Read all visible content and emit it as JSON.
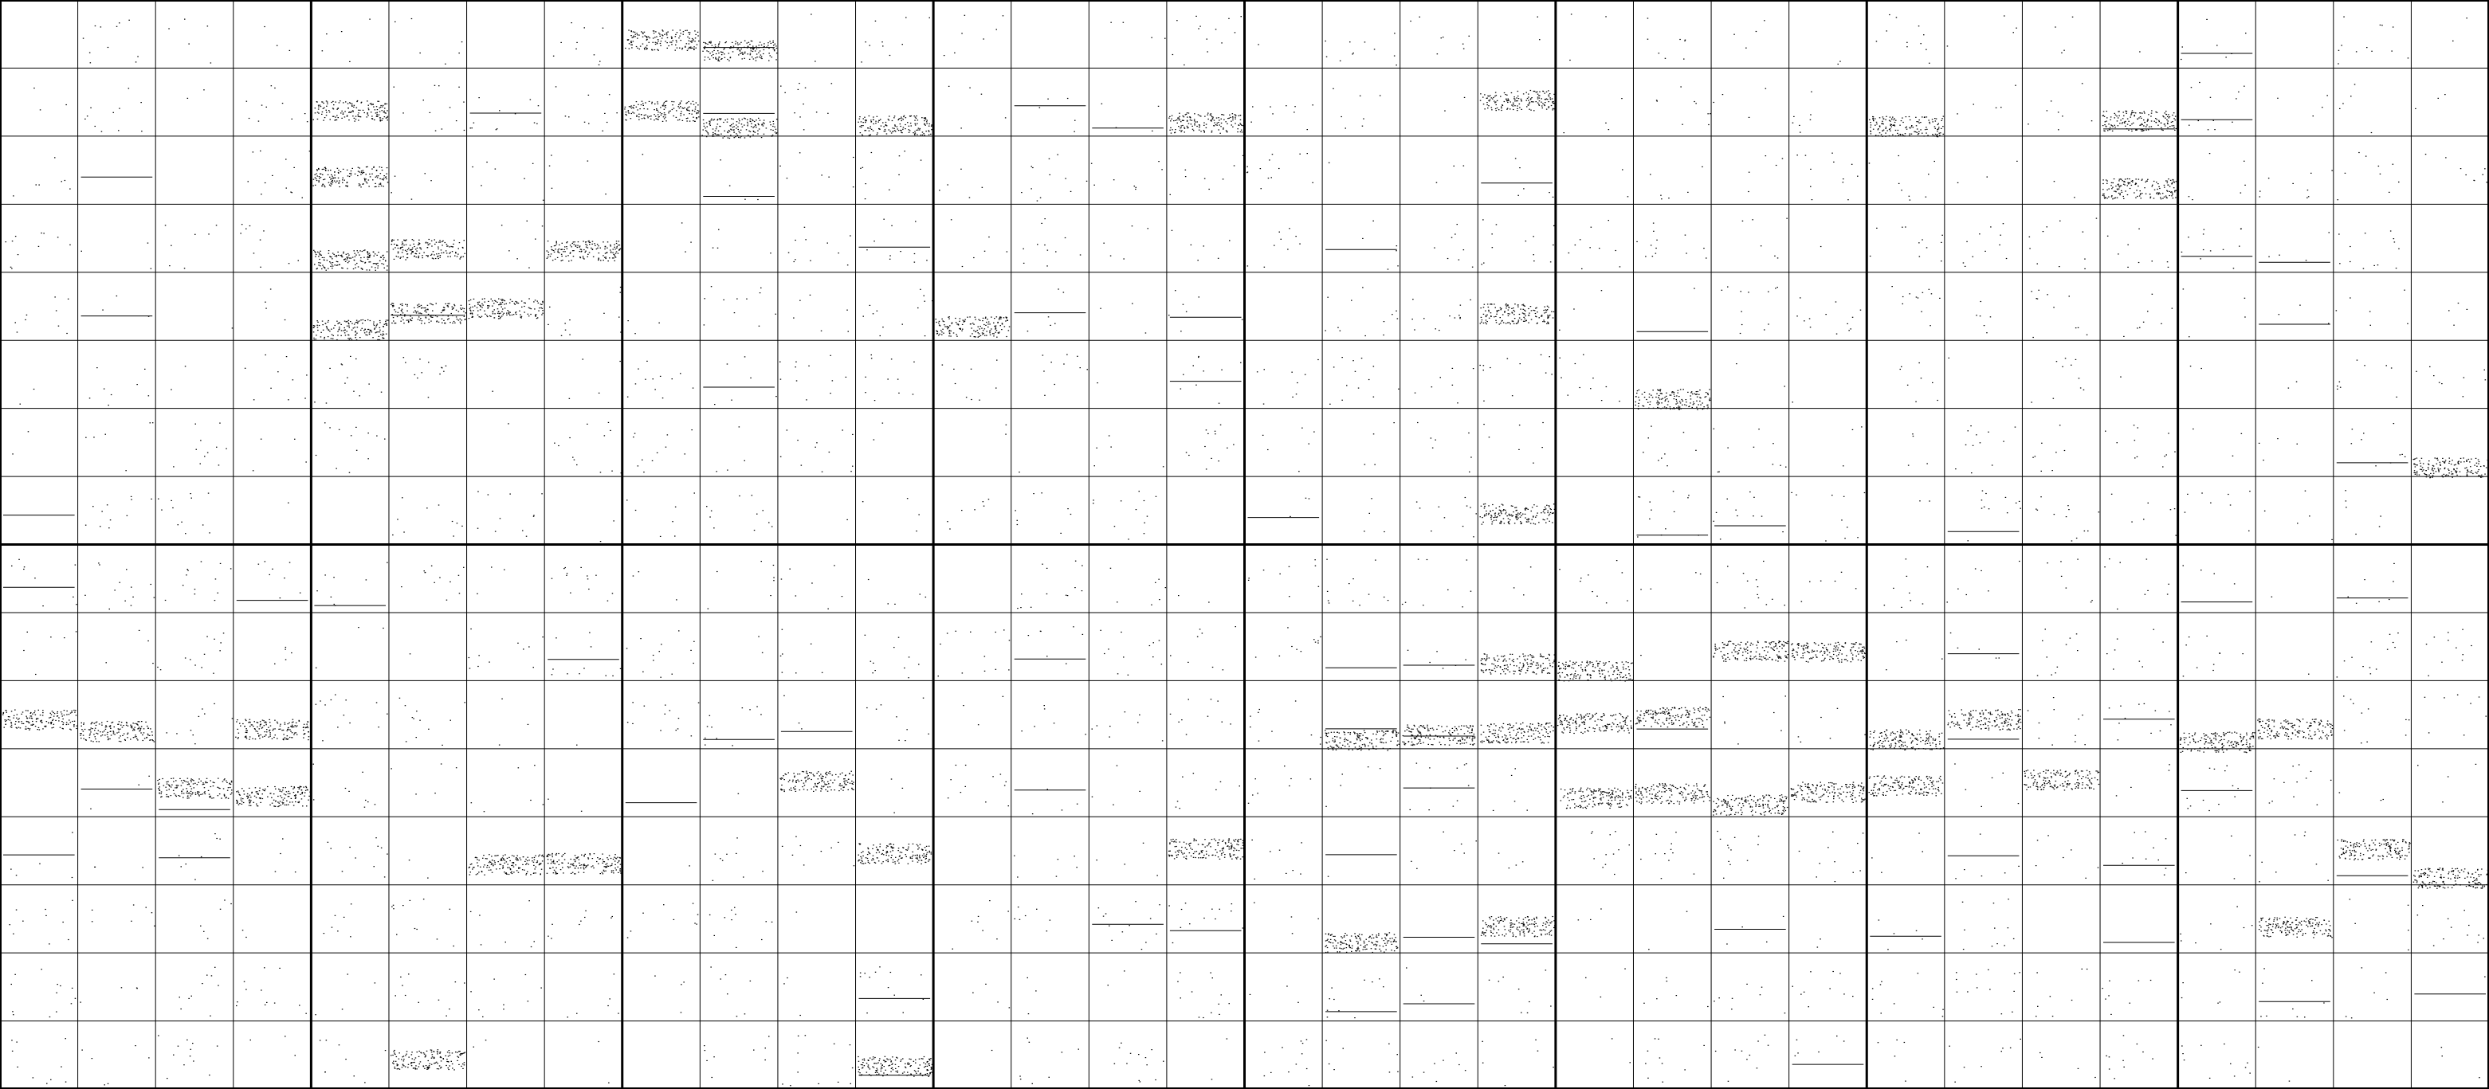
{
  "image": {
    "description_kind": "binary occupancy grid of point clusters",
    "colors": {
      "background": "#ffffff",
      "grid_line": "#000000",
      "points": "#000000"
    },
    "grid": {
      "panel_rows": 2,
      "panel_cols": 8,
      "subcells_per_panel_rows": 8,
      "subcells_per_panel_cols": 4
    }
  }
}
